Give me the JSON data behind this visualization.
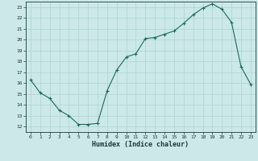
{
  "title": "",
  "xlabel": "Humidex (Indice chaleur)",
  "ylabel": "",
  "x": [
    0,
    1,
    2,
    3,
    4,
    5,
    6,
    7,
    8,
    9,
    10,
    11,
    12,
    13,
    14,
    15,
    16,
    17,
    18,
    19,
    20,
    21,
    22,
    23
  ],
  "y": [
    16.3,
    15.1,
    14.6,
    13.5,
    13.0,
    12.2,
    12.2,
    12.3,
    15.3,
    17.2,
    18.4,
    18.7,
    20.1,
    20.2,
    20.5,
    20.8,
    21.5,
    22.3,
    22.9,
    23.3,
    22.8,
    21.6,
    17.5,
    15.9
  ],
  "xlim": [
    -0.5,
    23.5
  ],
  "ylim": [
    11.5,
    23.5
  ],
  "yticks": [
    12,
    13,
    14,
    15,
    16,
    17,
    18,
    19,
    20,
    21,
    22,
    23
  ],
  "xticks": [
    0,
    1,
    2,
    3,
    4,
    5,
    6,
    7,
    8,
    9,
    10,
    11,
    12,
    13,
    14,
    15,
    16,
    17,
    18,
    19,
    20,
    21,
    22,
    23
  ],
  "line_color": "#1a6b5a",
  "marker": "+",
  "bg_color": "#cce8e8",
  "grid_color": "#aad4d4",
  "label_color": "#1a3a3a",
  "tick_color": "#1a3a3a"
}
